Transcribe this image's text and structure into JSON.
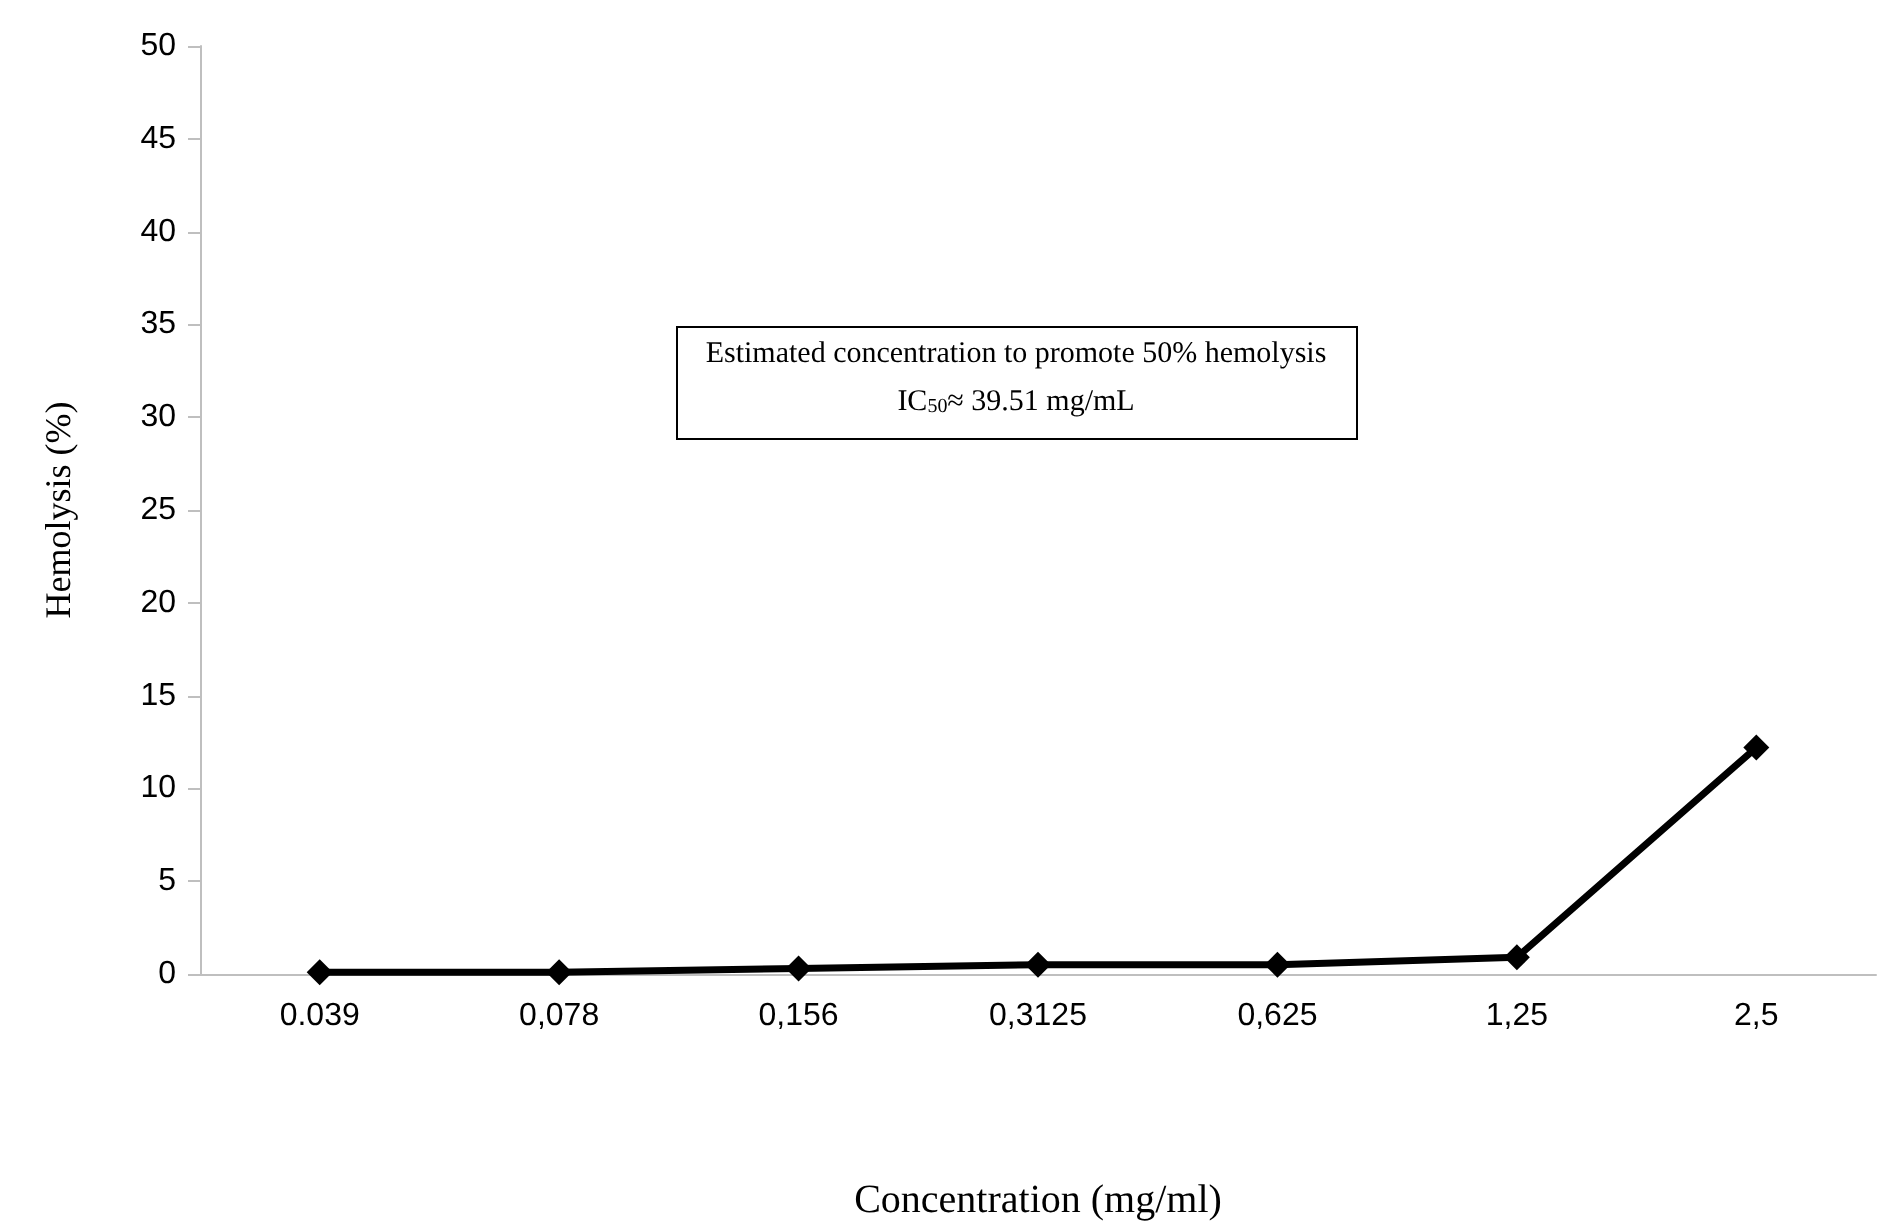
{
  "chart_data": {
    "type": "line",
    "xlabel": "Concentration (mg/ml)",
    "ylabel": "Hemolysis (%)",
    "categories": [
      "0.039",
      "0,078",
      "0,156",
      "0,3125",
      "0,625",
      "1,25",
      "2,5"
    ],
    "series": [
      {
        "color": "#000000",
        "values": [
          0.1,
          0.1,
          0.3,
          0.5,
          0.5,
          0.9,
          12.2
        ]
      }
    ],
    "ylim": [
      0,
      50
    ],
    "yticks": [
      0,
      5,
      10,
      15,
      20,
      25,
      30,
      35,
      40,
      45,
      50
    ],
    "marker": "diamond",
    "line_style": "solid",
    "annotations": [
      "Estimated concentration to promote 50% hemolysis",
      "IC$_{50}$≈ 39.51 mg/mL"
    ]
  }
}
